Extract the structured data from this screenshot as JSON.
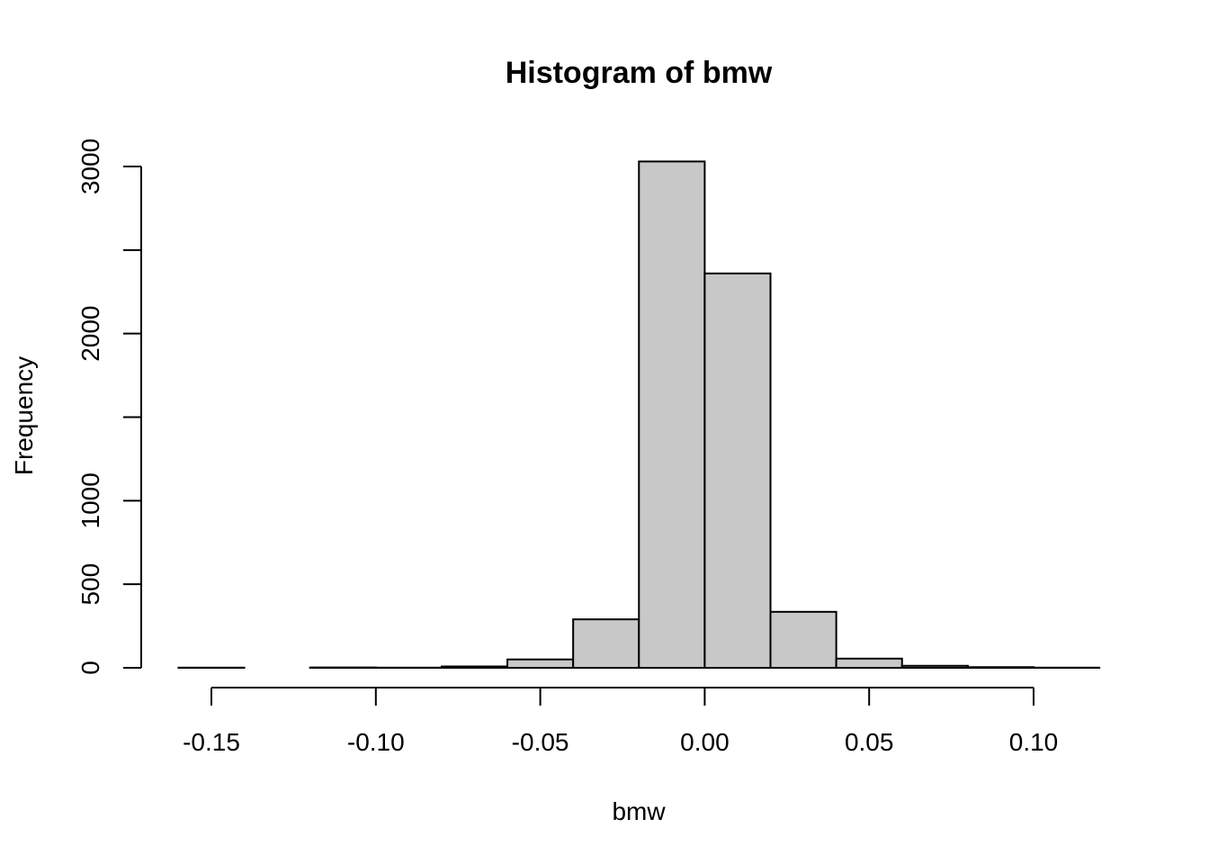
{
  "chart_data": {
    "type": "bar",
    "title": "Histogram of bmw",
    "xlabel": "bmw",
    "ylabel": "Frequency",
    "bins": [
      {
        "x0": -0.16,
        "x1": -0.14,
        "count": 1
      },
      {
        "x0": -0.14,
        "x1": -0.12,
        "count": 0
      },
      {
        "x0": -0.12,
        "x1": -0.1,
        "count": 2
      },
      {
        "x0": -0.1,
        "x1": -0.08,
        "count": 1
      },
      {
        "x0": -0.08,
        "x1": -0.06,
        "count": 8
      },
      {
        "x0": -0.06,
        "x1": -0.04,
        "count": 50
      },
      {
        "x0": -0.04,
        "x1": -0.02,
        "count": 290
      },
      {
        "x0": -0.02,
        "x1": 0.0,
        "count": 3030
      },
      {
        "x0": 0.0,
        "x1": 0.02,
        "count": 2360
      },
      {
        "x0": 0.02,
        "x1": 0.04,
        "count": 335
      },
      {
        "x0": 0.04,
        "x1": 0.06,
        "count": 55
      },
      {
        "x0": 0.06,
        "x1": 0.08,
        "count": 12
      },
      {
        "x0": 0.08,
        "x1": 0.1,
        "count": 4
      },
      {
        "x0": 0.1,
        "x1": 0.12,
        "count": 1
      }
    ],
    "xlim": [
      -0.16,
      0.12
    ],
    "ylim": [
      0,
      3000
    ],
    "x_ticks": [
      -0.15,
      -0.1,
      -0.05,
      0.0,
      0.05,
      0.1
    ],
    "x_tick_labels": [
      "-0.15",
      "-0.10",
      "-0.05",
      "0.00",
      "0.05",
      "0.10"
    ],
    "y_ticks": [
      0,
      500,
      1000,
      1500,
      2000,
      2500,
      3000
    ],
    "y_tick_labels": [
      "0",
      "500",
      "1000",
      "",
      "2000",
      "",
      "3000"
    ],
    "bar_color": "#c8c8c8",
    "edge_color": "#000000",
    "grid": false,
    "legend": "none"
  }
}
